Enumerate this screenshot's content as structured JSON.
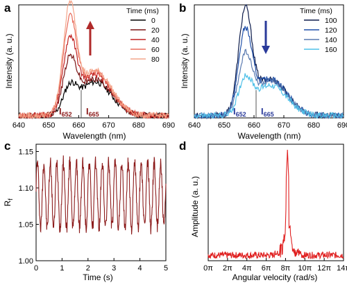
{
  "panel_labels": [
    "a",
    "b",
    "c",
    "d"
  ],
  "chart_data": [
    {
      "id": "a",
      "type": "line",
      "xlabel": "Wavelength (nm)",
      "ylabel": "Intensity (a. u.)",
      "xlim": [
        640,
        690
      ],
      "xticks": [
        640,
        650,
        660,
        670,
        680,
        690
      ],
      "ylim": [
        0,
        1.1
      ],
      "legend_title": "Time (ms)",
      "legend_position": "top-right",
      "annotations": [
        {
          "text": "I",
          "sub": "652"
        },
        {
          "text": "I",
          "sub": "665"
        }
      ],
      "arrow": "up",
      "accent": "#b02a2a",
      "series": [
        {
          "name": "0",
          "color": "#000000",
          "amp_peak": 0.22,
          "amp_side": 0.33,
          "noise": 0.03
        },
        {
          "name": "20",
          "color": "#7a1414",
          "amp_peak": 0.48,
          "amp_side": 0.36,
          "noise": 0.03
        },
        {
          "name": "40",
          "color": "#c02020",
          "amp_peak": 0.66,
          "amp_side": 0.4,
          "noise": 0.03
        },
        {
          "name": "60",
          "color": "#e86a5a",
          "amp_peak": 0.86,
          "amp_side": 0.42,
          "noise": 0.03
        },
        {
          "name": "80",
          "color": "#f4a58a",
          "amp_peak": 0.98,
          "amp_side": 0.44,
          "noise": 0.03
        }
      ]
    },
    {
      "id": "b",
      "type": "line",
      "xlabel": "Wavelength (nm)",
      "ylabel": "Intensity (a. u.)",
      "xlim": [
        640,
        690
      ],
      "xticks": [
        640,
        650,
        660,
        670,
        680,
        690
      ],
      "ylim": [
        0,
        1.1
      ],
      "legend_title": "Time (ms)",
      "legend_position": "top-right",
      "annotations": [
        {
          "text": "I",
          "sub": "652"
        },
        {
          "text": "I",
          "sub": "665"
        }
      ],
      "arrow": "down",
      "accent": "#2a3a9a",
      "series": [
        {
          "name": "100",
          "color": "#0b1a4a",
          "amp_peak": 0.95,
          "amp_side": 0.36,
          "noise": 0.03
        },
        {
          "name": "120",
          "color": "#1f4fa8",
          "amp_peak": 0.75,
          "amp_side": 0.36,
          "noise": 0.03
        },
        {
          "name": "140",
          "color": "#5a7ab0",
          "amp_peak": 0.52,
          "amp_side": 0.34,
          "noise": 0.03
        },
        {
          "name": "160",
          "color": "#4fc0e8",
          "amp_peak": 0.3,
          "amp_side": 0.3,
          "noise": 0.03
        }
      ]
    },
    {
      "id": "c",
      "type": "line",
      "xlabel": "Time (s)",
      "ylabel": "R",
      "ylabel_sub": "f",
      "xlim": [
        0,
        5
      ],
      "xticks": [
        0,
        1,
        2,
        3,
        4,
        5
      ],
      "ylim": [
        1.0,
        1.16
      ],
      "yticks": [
        1.0,
        1.05,
        1.1,
        1.15
      ],
      "ytick_labels": [
        "1.00",
        "1.05",
        "1.10",
        "1.15"
      ],
      "color": "#8b1a1a",
      "oscillation": {
        "period_s": 0.25,
        "mean": 1.09,
        "amplitude": 0.045
      }
    },
    {
      "id": "d",
      "type": "line",
      "xlabel": "Angular velocity (rad/s)",
      "ylabel": "Amplitude (a. u.)",
      "xlim": [
        0,
        14
      ],
      "xticks": [
        0,
        2,
        4,
        6,
        8,
        10,
        12,
        14
      ],
      "xtick_labels": [
        "0π",
        "2π",
        "4π",
        "6π",
        "8π",
        "10π",
        "12π",
        "14π"
      ],
      "ylim": [
        0,
        1.05
      ],
      "color": "#e02020",
      "peak_at": 8.2
    }
  ]
}
